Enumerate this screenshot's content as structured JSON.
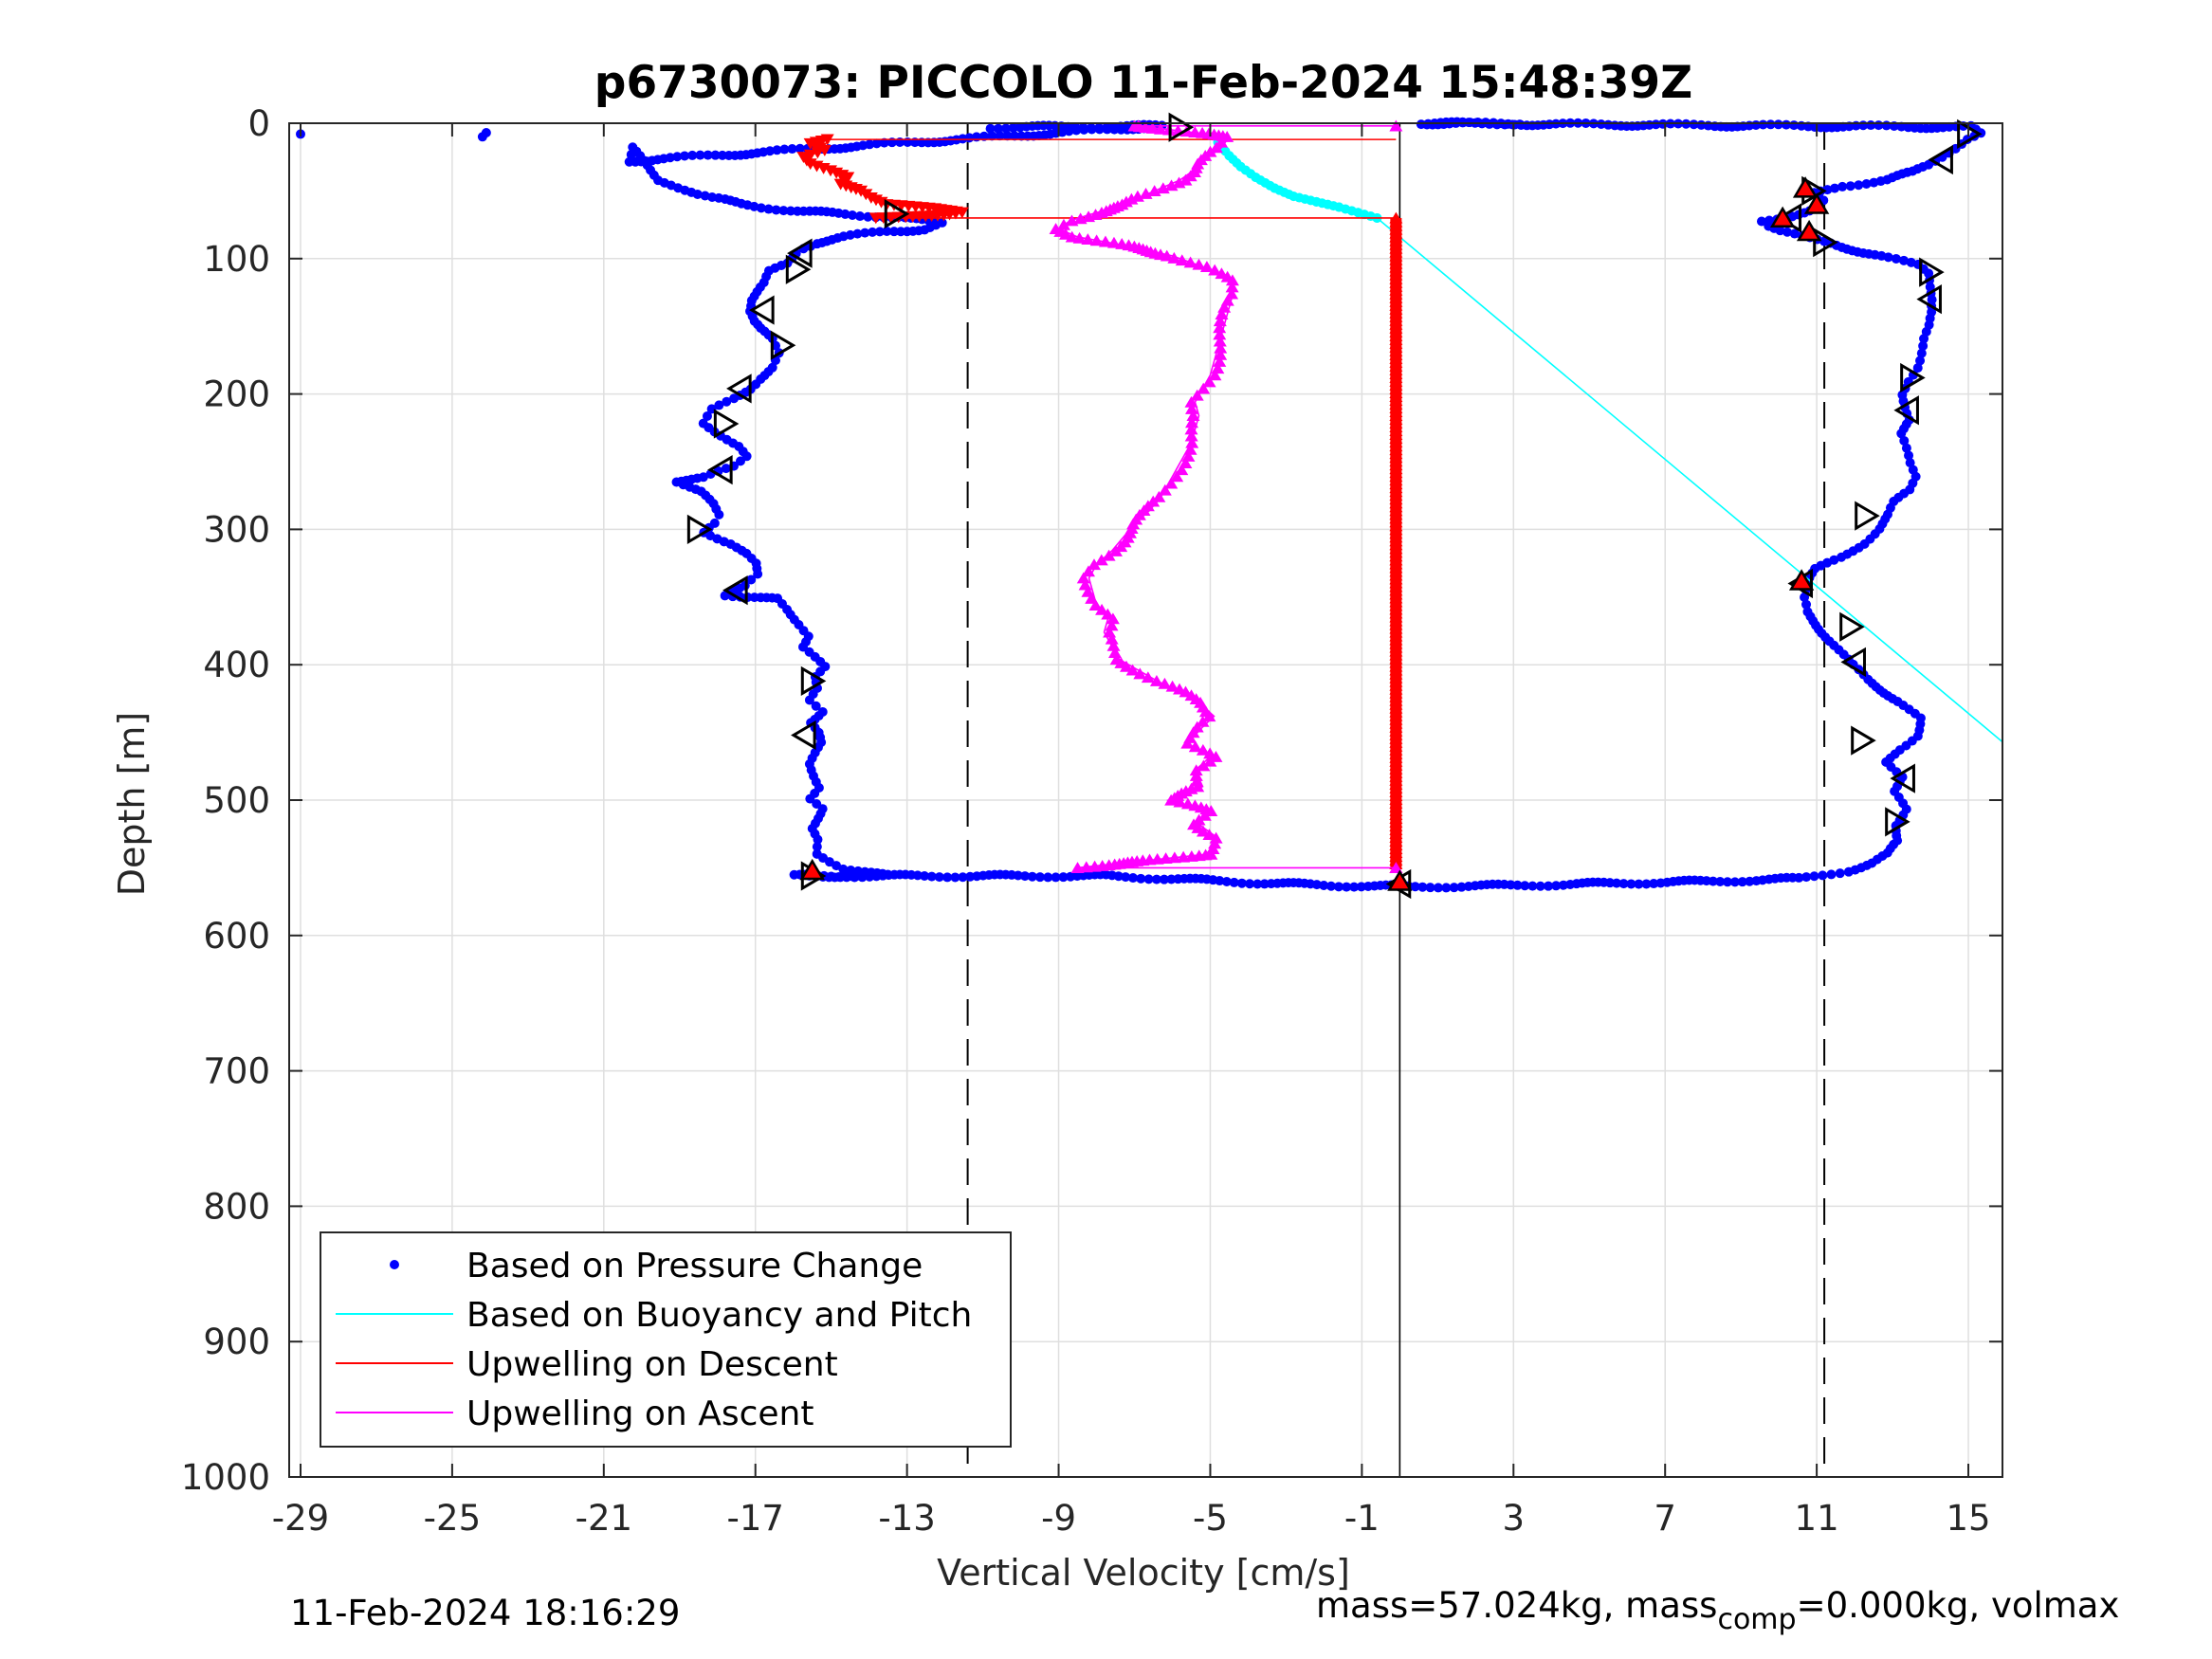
{
  "chart_data": {
    "type": "scatter",
    "title": "p6730073: PICCOLO 11-Feb-2024 15:48:39Z",
    "xlabel": "Vertical Velocity [cm/s]",
    "ylabel": "Depth [m]",
    "xlim": [
      -29.3,
      15.9
    ],
    "ylim": [
      0,
      1000
    ],
    "y_reversed": true,
    "xticks": [
      -29,
      -25,
      -21,
      -17,
      -13,
      -9,
      -5,
      -1,
      3,
      7,
      11,
      15
    ],
    "yticks": [
      0,
      100,
      200,
      300,
      400,
      500,
      600,
      700,
      800,
      900,
      1000
    ],
    "grid": true,
    "legend_position": "bottom-left",
    "reference_lines": {
      "dashed_x": [
        -11.4,
        11.2
      ],
      "solid_x": [
        0.0
      ]
    },
    "series": [
      {
        "name": "Based on Pressure Change",
        "style": "dots",
        "color": "#0000ff",
        "points": [
          [
            -29,
            8
          ],
          [
            -24.2,
            10
          ],
          [
            -24.1,
            7
          ],
          [
            -10.8,
            3
          ],
          [
            -6.2,
            2
          ],
          [
            -20.4,
            28
          ],
          [
            -20.3,
            18
          ],
          [
            -19.8,
            32
          ],
          [
            -19.5,
            42
          ],
          [
            -19.2,
            45
          ],
          [
            -18.6,
            52
          ],
          [
            -18.2,
            55
          ],
          [
            -17.8,
            57
          ],
          [
            -17.3,
            60
          ],
          [
            -16.8,
            62
          ],
          [
            -15.8,
            65
          ],
          [
            -14.2,
            68
          ],
          [
            -13.3,
            69
          ],
          [
            -12.6,
            72
          ],
          [
            -12,
            74
          ],
          [
            -12.5,
            78
          ],
          [
            -13.6,
            80
          ],
          [
            -14.6,
            84
          ],
          [
            -15.4,
            88
          ],
          [
            -15.8,
            92
          ],
          [
            -16,
            96
          ],
          [
            -16.1,
            100
          ],
          [
            -16.2,
            104
          ],
          [
            -16.6,
            110
          ],
          [
            -16.7,
            118
          ],
          [
            -16.9,
            124
          ],
          [
            -17.1,
            130
          ],
          [
            -17.2,
            138
          ],
          [
            -17.1,
            146
          ],
          [
            -16.9,
            152
          ],
          [
            -16.5,
            160
          ],
          [
            -16.3,
            170
          ],
          [
            -16.5,
            180
          ],
          [
            -16.9,
            188
          ],
          [
            -17.2,
            196
          ],
          [
            -17.6,
            204
          ],
          [
            -18.1,
            212
          ],
          [
            -18.3,
            222
          ],
          [
            -17.9,
            230
          ],
          [
            -17.5,
            238
          ],
          [
            -17.3,
            246
          ],
          [
            -17.6,
            254
          ],
          [
            -18.3,
            262
          ],
          [
            -19.1,
            264
          ],
          [
            -18.5,
            272
          ],
          [
            -18.1,
            282
          ],
          [
            -17.9,
            290
          ],
          [
            -18,
            296
          ],
          [
            -18.3,
            302
          ],
          [
            -17.7,
            310
          ],
          [
            -17.3,
            318
          ],
          [
            -17,
            326
          ],
          [
            -16.9,
            334
          ],
          [
            -17.2,
            342
          ],
          [
            -17.8,
            348
          ],
          [
            -16.4,
            352
          ],
          [
            -16.1,
            360
          ],
          [
            -15.8,
            370
          ],
          [
            -15.6,
            378
          ],
          [
            -15.8,
            386
          ],
          [
            -15.5,
            394
          ],
          [
            -15.2,
            402
          ],
          [
            -15.4,
            410
          ],
          [
            -15.3,
            418
          ],
          [
            -15.5,
            426
          ],
          [
            -15.2,
            434
          ],
          [
            -15.6,
            442
          ],
          [
            -15.4,
            450
          ],
          [
            -15.3,
            458
          ],
          [
            -15.4,
            466
          ],
          [
            -15.5,
            474
          ],
          [
            -15.4,
            482
          ],
          [
            -15.3,
            490
          ],
          [
            -15.6,
            498
          ],
          [
            -15.3,
            506
          ],
          [
            -15.4,
            514
          ],
          [
            -15.5,
            522
          ],
          [
            -15.3,
            530
          ],
          [
            -15.3,
            540
          ],
          [
            -15.0,
            545
          ],
          [
            -14.7,
            550
          ],
          [
            -13.5,
            556
          ],
          [
            -16.0,
            556
          ],
          [
            -7.7,
            556
          ],
          [
            -4.5,
            560
          ],
          [
            -3.8,
            561
          ],
          [
            -2.8,
            562
          ],
          [
            -1.6,
            563
          ],
          [
            0.3,
            564
          ],
          [
            3.0,
            563
          ],
          [
            4.6,
            562
          ],
          [
            6.3,
            561
          ],
          [
            8.0,
            560
          ],
          [
            9.5,
            559
          ],
          [
            10.6,
            558
          ],
          [
            11.0,
            556
          ],
          [
            11.4,
            554
          ],
          [
            11.8,
            552
          ],
          [
            12.4,
            547
          ],
          [
            12.9,
            540
          ],
          [
            13.2,
            530
          ],
          [
            13.1,
            518
          ],
          [
            13.3,
            506
          ],
          [
            13.0,
            494
          ],
          [
            13.3,
            484
          ],
          [
            12.9,
            472
          ],
          [
            13.2,
            462
          ],
          [
            13.6,
            452
          ],
          [
            13.7,
            440
          ],
          [
            13.2,
            428
          ],
          [
            12.7,
            418
          ],
          [
            12.3,
            410
          ],
          [
            11.9,
            400
          ],
          [
            11.6,
            390
          ],
          [
            11.3,
            380
          ],
          [
            11.0,
            370
          ],
          [
            10.7,
            360
          ],
          [
            10.6,
            350
          ],
          [
            10.7,
            340
          ],
          [
            11.0,
            330
          ],
          [
            11.7,
            320
          ],
          [
            12.2,
            310
          ],
          [
            12.6,
            300
          ],
          [
            12.9,
            290
          ],
          [
            13.1,
            280
          ],
          [
            13.5,
            270
          ],
          [
            13.6,
            260
          ],
          [
            13.4,
            250
          ],
          [
            13.3,
            240
          ],
          [
            13.2,
            230
          ],
          [
            13.5,
            220
          ],
          [
            13.4,
            210
          ],
          [
            13.3,
            200
          ],
          [
            13.4,
            190
          ],
          [
            13.6,
            180
          ],
          [
            13.7,
            170
          ],
          [
            13.8,
            160
          ],
          [
            14.0,
            150
          ],
          [
            14.1,
            140
          ],
          [
            14.1,
            130
          ],
          [
            14.0,
            120
          ],
          [
            13.9,
            110
          ],
          [
            13.6,
            104
          ],
          [
            12.9,
            100
          ],
          [
            12.3,
            96
          ],
          [
            11.8,
            92
          ],
          [
            11.3,
            88
          ],
          [
            10.6,
            84
          ],
          [
            10.1,
            80
          ],
          [
            9.8,
            76
          ],
          [
            9.6,
            72
          ],
          [
            10.3,
            68
          ],
          [
            10.9,
            64
          ],
          [
            11.2,
            58
          ],
          [
            11.0,
            52
          ],
          [
            11.7,
            46
          ],
          [
            12.8,
            42
          ],
          [
            13.6,
            36
          ],
          [
            14.0,
            30
          ],
          [
            14.3,
            24
          ],
          [
            14.6,
            18
          ],
          [
            14.9,
            12
          ],
          [
            15.3,
            8
          ],
          [
            15.1,
            3
          ],
          [
            0.5,
            0
          ],
          [
            3.1,
            0
          ]
        ]
      },
      {
        "name": "Based on Buoyancy and Pitch",
        "style": "line",
        "color": "#00ffff",
        "points": [
          [
            -4.8,
            14
          ],
          [
            -4.5,
            24
          ],
          [
            -4.2,
            32
          ],
          [
            -3.8,
            40
          ],
          [
            -3.3,
            48
          ],
          [
            -2.8,
            54
          ],
          [
            -2.2,
            58
          ],
          [
            -1.6,
            62
          ],
          [
            -1.1,
            66
          ],
          [
            -0.6,
            70
          ],
          [
            15.9,
            457
          ]
        ]
      },
      {
        "name": "Upwelling on Descent",
        "style": "line",
        "color": "#ff0000",
        "points": [
          [
            -0.1,
            12
          ],
          [
            -15.1,
            12
          ],
          [
            -15.6,
            15
          ],
          [
            -15.2,
            20
          ],
          [
            -15.7,
            25
          ],
          [
            -15.5,
            30
          ],
          [
            -15.0,
            35
          ],
          [
            -14.6,
            40
          ],
          [
            -14.8,
            45
          ],
          [
            -14.2,
            50
          ],
          [
            -13.9,
            55
          ],
          [
            -13.5,
            60
          ],
          [
            -12.3,
            63
          ],
          [
            -11.5,
            66
          ],
          [
            -12.0,
            68
          ],
          [
            -13.8,
            70
          ],
          [
            -0.1,
            70
          ],
          [
            -0.1,
            550
          ]
        ]
      },
      {
        "name": "Upwelling on Ascent",
        "style": "line",
        "color": "#ff00ff",
        "points": [
          [
            -0.1,
            550
          ],
          [
            -8.5,
            550
          ],
          [
            -5.1,
            540
          ],
          [
            -4.8,
            528
          ],
          [
            -5.3,
            518
          ],
          [
            -5.0,
            508
          ],
          [
            -6.1,
            500
          ],
          [
            -5.2,
            490
          ],
          [
            -5.4,
            478
          ],
          [
            -5.0,
            468
          ],
          [
            -5.6,
            458
          ],
          [
            -5.2,
            446
          ],
          [
            -4.9,
            438
          ],
          [
            -5.3,
            428
          ],
          [
            -5.8,
            420
          ],
          [
            -6.4,
            412
          ],
          [
            -6.9,
            404
          ],
          [
            -7.4,
            396
          ],
          [
            -7.6,
            386
          ],
          [
            -7.8,
            376
          ],
          [
            -7.7,
            366
          ],
          [
            -8.0,
            356
          ],
          [
            -8.1,
            346
          ],
          [
            -8.2,
            336
          ],
          [
            -8.0,
            326
          ],
          [
            -7.6,
            316
          ],
          [
            -7.3,
            306
          ],
          [
            -7.0,
            296
          ],
          [
            -6.6,
            286
          ],
          [
            -6.3,
            276
          ],
          [
            -6.1,
            266
          ],
          [
            -5.9,
            256
          ],
          [
            -5.7,
            246
          ],
          [
            -5.5,
            236
          ],
          [
            -5.4,
            226
          ],
          [
            -5.3,
            216
          ],
          [
            -5.4,
            206
          ],
          [
            -5.2,
            196
          ],
          [
            -5.0,
            186
          ],
          [
            -4.9,
            176
          ],
          [
            -4.8,
            166
          ],
          [
            -4.7,
            156
          ],
          [
            -4.6,
            146
          ],
          [
            -4.5,
            136
          ],
          [
            -4.4,
            126
          ],
          [
            -4.5,
            116
          ],
          [
            -5.2,
            106
          ],
          [
            -6.0,
            98
          ],
          [
            -7.3,
            90
          ],
          [
            -8.5,
            84
          ],
          [
            -9.0,
            78
          ],
          [
            -8.7,
            72
          ],
          [
            -8.0,
            66
          ],
          [
            -7.2,
            60
          ],
          [
            -6.8,
            54
          ],
          [
            -6.3,
            48
          ],
          [
            -5.8,
            42
          ],
          [
            -5.5,
            36
          ],
          [
            -5.3,
            30
          ],
          [
            -5.0,
            24
          ],
          [
            -4.7,
            18
          ],
          [
            -4.5,
            10
          ],
          [
            -6.9,
            2
          ],
          [
            -0.1,
            2
          ]
        ]
      }
    ],
    "turn_markers": {
      "note": "open black triangles on pressure-change velocity",
      "points": [
        [
          -5.8,
          3
        ],
        [
          15.0,
          8
        ],
        [
          14.3,
          27
        ],
        [
          10.9,
          50
        ],
        [
          10.3,
          70
        ],
        [
          11.2,
          88
        ],
        [
          -13.3,
          67
        ],
        [
          -15.8,
          96
        ],
        [
          -15.9,
          108
        ],
        [
          -16.8,
          138
        ],
        [
          -16.3,
          164
        ],
        [
          -17.4,
          196
        ],
        [
          -17.8,
          222
        ],
        [
          -17.9,
          256
        ],
        [
          -18.5,
          300
        ],
        [
          -17.5,
          345
        ],
        [
          -15.5,
          412
        ],
        [
          -15.7,
          452
        ],
        [
          -15.5,
          556
        ],
        [
          14.0,
          110
        ],
        [
          14.0,
          130
        ],
        [
          13.5,
          188
        ],
        [
          13.4,
          212
        ],
        [
          12.3,
          290
        ],
        [
          10.6,
          340
        ],
        [
          11.9,
          372
        ],
        [
          12.0,
          398
        ],
        [
          12.2,
          456
        ],
        [
          13.3,
          484
        ],
        [
          13.1,
          516
        ],
        [
          0.0,
          562
        ]
      ]
    },
    "turn_markers_red": {
      "note": "red filled triangles",
      "points": [
        [
          10.7,
          48
        ],
        [
          11.0,
          60
        ],
        [
          10.1,
          70
        ],
        [
          10.8,
          80
        ],
        [
          10.6,
          338
        ],
        [
          -15.5,
          552
        ],
        [
          0.0,
          560
        ]
      ]
    },
    "legend": [
      {
        "label": "Based on Pressure Change",
        "symbol": "dot",
        "color": "#0000ff"
      },
      {
        "label": "Based on Buoyancy and Pitch",
        "symbol": "line",
        "color": "#00ffff"
      },
      {
        "label": "Upwelling on Descent",
        "symbol": "line",
        "color": "#ff0000"
      },
      {
        "label": "Upwelling on Ascent",
        "symbol": "line",
        "color": "#ff00ff"
      }
    ]
  },
  "footer": {
    "timestamp": "11-Feb-2024 18:16:29",
    "mass_text": "mass=57.024kg, mass",
    "mass_sub": "comp",
    "mass_rest": "=0.000kg, volmax"
  }
}
